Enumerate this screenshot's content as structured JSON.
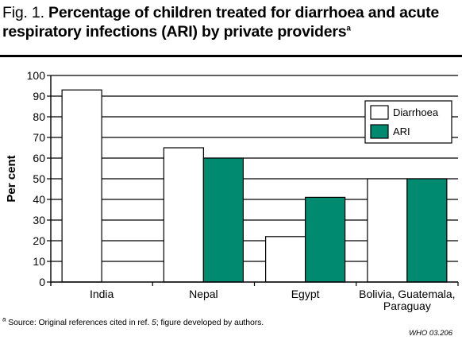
{
  "title": {
    "prefix": "Fig. 1.",
    "text": "Percentage of children treated for diarrhoea and acute respiratory infections (ARI) by private providers",
    "sup": "a"
  },
  "footnote": {
    "sup": "a",
    "text_before": "Source: Original references cited in ref.",
    "ref": "5",
    "text_after": "; figure developed by authors."
  },
  "credit": "WHO 03.206",
  "colors": {
    "diarrhoea": "#ffffff",
    "ari": "#008a70",
    "border": "#000000"
  },
  "chart_data": {
    "type": "bar",
    "categories": [
      "India",
      "Nepal",
      "Egypt",
      "Bolivia, Guatemala,\nParaguay"
    ],
    "series": [
      {
        "name": "Diarrhoea",
        "values": [
          93,
          65,
          22,
          50
        ]
      },
      {
        "name": "ARI",
        "values": [
          null,
          60,
          41,
          50
        ]
      }
    ],
    "title": "Percentage of children treated for diarrhoea and acute respiratory infections (ARI) by private providers",
    "xlabel": "",
    "ylabel": "Per cent",
    "ylim": [
      0,
      100
    ],
    "yticks": [
      0,
      10,
      20,
      30,
      40,
      50,
      60,
      70,
      80,
      90,
      100
    ],
    "grid": true,
    "legend": "top-right"
  }
}
